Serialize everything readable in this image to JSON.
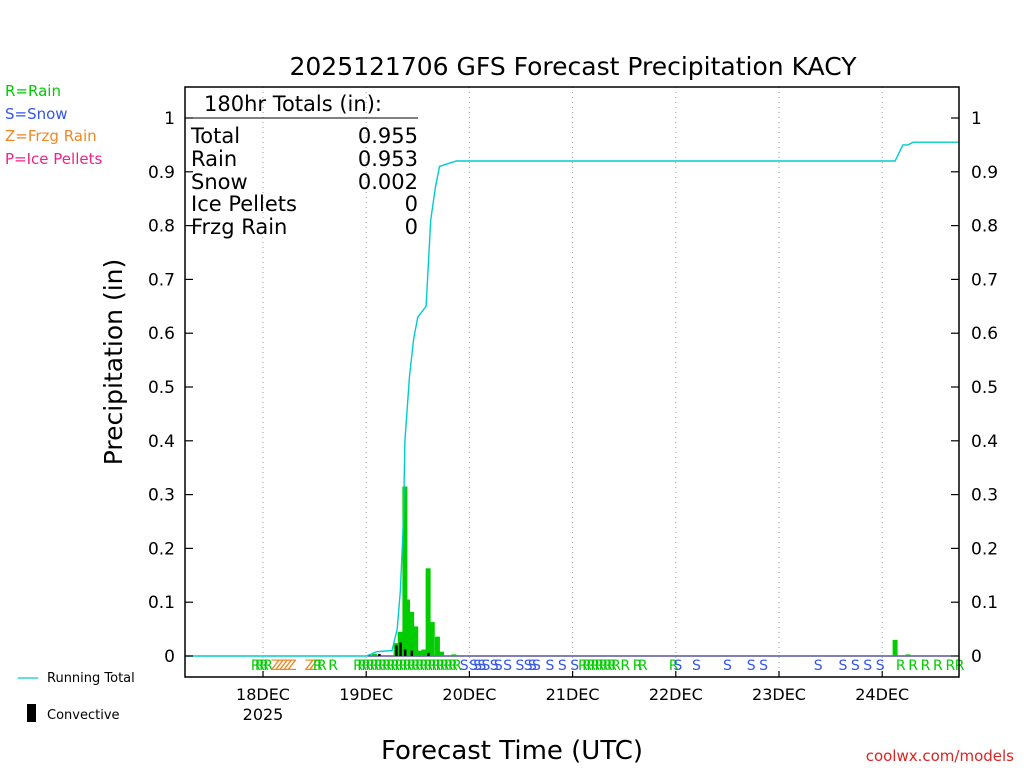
{
  "chart_data": {
    "type": "bar",
    "title": "2025121706 GFS Forecast Precipitation KACY",
    "xlabel": "Forecast Time (UTC)",
    "ylabel": "Precipitation (in)",
    "ylim": [
      0,
      1.05
    ],
    "yticks": [
      "0",
      "0.1",
      "0.2",
      "0.3",
      "0.4",
      "0.5",
      "0.6",
      "0.7",
      "0.8",
      "0.9",
      "1"
    ],
    "ytick_values": [
      0,
      0.1,
      0.2,
      0.3,
      0.4,
      0.5,
      0.6,
      0.7,
      0.8,
      0.9,
      1
    ],
    "x_range_days": [
      17.25,
      24.75
    ],
    "x_unit": "day of December 2025 (UTC)",
    "xticks": [
      {
        "day": 18,
        "label": "18DEC",
        "sublabel": "2025"
      },
      {
        "day": 19,
        "label": "19DEC",
        "sublabel": ""
      },
      {
        "day": 20,
        "label": "20DEC",
        "sublabel": ""
      },
      {
        "day": 21,
        "label": "21DEC",
        "sublabel": ""
      },
      {
        "day": 22,
        "label": "22DEC",
        "sublabel": ""
      },
      {
        "day": 23,
        "label": "23DEC",
        "sublabel": ""
      },
      {
        "day": 24,
        "label": "24DEC",
        "sublabel": ""
      }
    ],
    "bars_3hr": [
      {
        "day": 19.08,
        "value": 0.004
      },
      {
        "day": 19.29,
        "value": 0.024
      },
      {
        "day": 19.33,
        "value": 0.045
      },
      {
        "day": 19.375,
        "value": 0.315
      },
      {
        "day": 19.4,
        "value": 0.105
      },
      {
        "day": 19.44,
        "value": 0.082
      },
      {
        "day": 19.48,
        "value": 0.055
      },
      {
        "day": 19.52,
        "value": 0.01
      },
      {
        "day": 19.56,
        "value": 0.012
      },
      {
        "day": 19.6,
        "value": 0.163
      },
      {
        "day": 19.64,
        "value": 0.063
      },
      {
        "day": 19.69,
        "value": 0.036
      },
      {
        "day": 19.73,
        "value": 0.008
      },
      {
        "day": 19.85,
        "value": 0.003
      },
      {
        "day": 24.125,
        "value": 0.03
      },
      {
        "day": 24.25,
        "value": 0.003
      }
    ],
    "convective_bars": [
      {
        "day": 19.125,
        "value": 0.004
      },
      {
        "day": 19.29,
        "value": 0.02
      },
      {
        "day": 19.33,
        "value": 0.025
      },
      {
        "day": 19.375,
        "value": 0.012
      },
      {
        "day": 19.44,
        "value": 0.01
      },
      {
        "day": 19.6,
        "value": 0.006
      }
    ],
    "running_total": [
      {
        "day": 17.25,
        "value": 0
      },
      {
        "day": 19.0,
        "value": 0
      },
      {
        "day": 19.04,
        "value": 0.003
      },
      {
        "day": 19.1,
        "value": 0.008
      },
      {
        "day": 19.25,
        "value": 0.01
      },
      {
        "day": 19.3,
        "value": 0.05
      },
      {
        "day": 19.33,
        "value": 0.12
      },
      {
        "day": 19.36,
        "value": 0.25
      },
      {
        "day": 19.375,
        "value": 0.4
      },
      {
        "day": 19.42,
        "value": 0.52
      },
      {
        "day": 19.46,
        "value": 0.59
      },
      {
        "day": 19.5,
        "value": 0.63
      },
      {
        "day": 19.54,
        "value": 0.64
      },
      {
        "day": 19.58,
        "value": 0.65
      },
      {
        "day": 19.625,
        "value": 0.81
      },
      {
        "day": 19.67,
        "value": 0.87
      },
      {
        "day": 19.71,
        "value": 0.91
      },
      {
        "day": 19.79,
        "value": 0.915
      },
      {
        "day": 19.875,
        "value": 0.92
      },
      {
        "day": 24.0,
        "value": 0.92
      },
      {
        "day": 24.125,
        "value": 0.92
      },
      {
        "day": 24.2,
        "value": 0.95
      },
      {
        "day": 24.25,
        "value": 0.95
      },
      {
        "day": 24.3,
        "value": 0.955
      },
      {
        "day": 24.75,
        "value": 0.955
      }
    ],
    "type_markers": [
      {
        "day": 17.93,
        "code": "R"
      },
      {
        "day": 17.97,
        "code": "R"
      },
      {
        "day": 18.01,
        "code": "R"
      },
      {
        "day": 18.05,
        "code": "R"
      },
      {
        "day": 18.12,
        "code": "Z"
      },
      {
        "day": 18.16,
        "code": "Z"
      },
      {
        "day": 18.2,
        "code": "Z"
      },
      {
        "day": 18.24,
        "code": "Z"
      },
      {
        "day": 18.28,
        "code": "Z"
      },
      {
        "day": 18.45,
        "code": "Z"
      },
      {
        "day": 18.49,
        "code": "Z"
      },
      {
        "day": 18.53,
        "code": "R"
      },
      {
        "day": 18.57,
        "code": "R"
      },
      {
        "day": 18.68,
        "code": "R"
      },
      {
        "day": 18.92,
        "code": "R"
      },
      {
        "day": 18.96,
        "code": "R"
      },
      {
        "day": 19.0,
        "code": "R"
      },
      {
        "day": 19.04,
        "code": "R"
      },
      {
        "day": 19.08,
        "code": "R"
      },
      {
        "day": 19.12,
        "code": "R"
      },
      {
        "day": 19.16,
        "code": "R"
      },
      {
        "day": 19.2,
        "code": "R"
      },
      {
        "day": 19.24,
        "code": "R"
      },
      {
        "day": 19.28,
        "code": "R"
      },
      {
        "day": 19.32,
        "code": "R"
      },
      {
        "day": 19.36,
        "code": "R"
      },
      {
        "day": 19.4,
        "code": "R"
      },
      {
        "day": 19.44,
        "code": "R"
      },
      {
        "day": 19.48,
        "code": "R"
      },
      {
        "day": 19.52,
        "code": "R"
      },
      {
        "day": 19.56,
        "code": "R"
      },
      {
        "day": 19.6,
        "code": "R"
      },
      {
        "day": 19.64,
        "code": "R"
      },
      {
        "day": 19.68,
        "code": "R"
      },
      {
        "day": 19.72,
        "code": "R"
      },
      {
        "day": 19.76,
        "code": "R"
      },
      {
        "day": 19.8,
        "code": "R"
      },
      {
        "day": 19.84,
        "code": "R"
      },
      {
        "day": 19.88,
        "code": "R"
      },
      {
        "day": 19.95,
        "code": "S"
      },
      {
        "day": 20.04,
        "code": "S"
      },
      {
        "day": 20.08,
        "code": "S"
      },
      {
        "day": 20.12,
        "code": "S"
      },
      {
        "day": 20.16,
        "code": "S"
      },
      {
        "day": 20.24,
        "code": "S"
      },
      {
        "day": 20.28,
        "code": "S"
      },
      {
        "day": 20.37,
        "code": "S"
      },
      {
        "day": 20.49,
        "code": "S"
      },
      {
        "day": 20.57,
        "code": "S"
      },
      {
        "day": 20.61,
        "code": "S"
      },
      {
        "day": 20.65,
        "code": "S"
      },
      {
        "day": 20.78,
        "code": "S"
      },
      {
        "day": 20.9,
        "code": "S"
      },
      {
        "day": 21.02,
        "code": "S"
      },
      {
        "day": 21.1,
        "code": "R"
      },
      {
        "day": 21.14,
        "code": "R"
      },
      {
        "day": 21.18,
        "code": "R"
      },
      {
        "day": 21.22,
        "code": "R"
      },
      {
        "day": 21.26,
        "code": "R"
      },
      {
        "day": 21.3,
        "code": "R"
      },
      {
        "day": 21.34,
        "code": "R"
      },
      {
        "day": 21.38,
        "code": "R"
      },
      {
        "day": 21.42,
        "code": "R"
      },
      {
        "day": 21.51,
        "code": "R"
      },
      {
        "day": 21.63,
        "code": "R"
      },
      {
        "day": 21.68,
        "code": "R"
      },
      {
        "day": 21.98,
        "code": "R"
      },
      {
        "day": 22.02,
        "code": "S"
      },
      {
        "day": 22.2,
        "code": "S"
      },
      {
        "day": 22.5,
        "code": "S"
      },
      {
        "day": 22.73,
        "code": "S"
      },
      {
        "day": 22.85,
        "code": "S"
      },
      {
        "day": 23.38,
        "code": "S"
      },
      {
        "day": 23.62,
        "code": "S"
      },
      {
        "day": 23.74,
        "code": "S"
      },
      {
        "day": 23.86,
        "code": "S"
      },
      {
        "day": 23.98,
        "code": "S"
      },
      {
        "day": 24.18,
        "code": "R"
      },
      {
        "day": 24.3,
        "code": "R"
      },
      {
        "day": 24.42,
        "code": "R"
      },
      {
        "day": 24.54,
        "code": "R"
      },
      {
        "day": 24.66,
        "code": "R"
      },
      {
        "day": 24.75,
        "code": "R"
      }
    ],
    "totals_box": {
      "heading": "180hr Totals (in):",
      "rows": [
        {
          "label": "Total",
          "value": "0.955"
        },
        {
          "label": "Rain",
          "value": "0.953"
        },
        {
          "label": "Snow",
          "value": "0.002"
        },
        {
          "label": "Ice Pellets",
          "value": "0"
        },
        {
          "label": "Frzg Rain",
          "value": "0"
        }
      ]
    },
    "type_legend": [
      {
        "text": "R=Rain",
        "color": "#00cc00",
        "code": "R"
      },
      {
        "text": "S=Snow",
        "color": "#3355ee",
        "code": "S"
      },
      {
        "text": "Z=Frzg Rain",
        "color": "#ee8822",
        "code": "Z"
      },
      {
        "text": "P=Ice Pellets",
        "color": "#ee2288",
        "code": "P"
      }
    ],
    "series_legend": {
      "running_total": "Running Total",
      "convective": "Convective"
    },
    "credit": "coolwx.com/models"
  },
  "colors": {
    "bar": "#00cc00",
    "convective": "#000000",
    "running_total": "#00cccc",
    "credit": "#dd2222",
    "grid": "#999999",
    "axis": "#000000"
  }
}
